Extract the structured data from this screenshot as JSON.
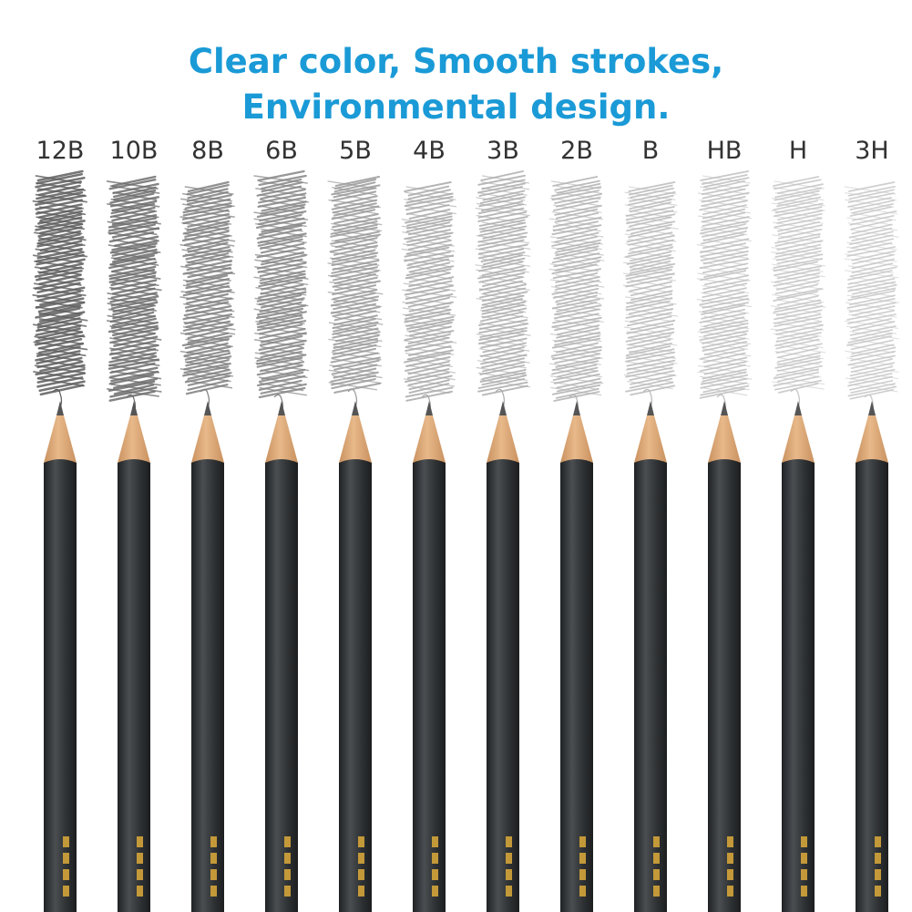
{
  "headline": {
    "line1": "Clear color, Smooth strokes,",
    "line2": "Environmental design.",
    "color": "#1a9ad6"
  },
  "grades": [
    {
      "label": "12B",
      "darkness": 0.95
    },
    {
      "label": "10B",
      "darkness": 0.85
    },
    {
      "label": "8B",
      "darkness": 0.72
    },
    {
      "label": "6B",
      "darkness": 0.68
    },
    {
      "label": "5B",
      "darkness": 0.55
    },
    {
      "label": "4B",
      "darkness": 0.45
    },
    {
      "label": "3B",
      "darkness": 0.42
    },
    {
      "label": "2B",
      "darkness": 0.38
    },
    {
      "label": "B",
      "darkness": 0.33
    },
    {
      "label": "HB",
      "darkness": 0.3
    },
    {
      "label": "H",
      "darkness": 0.26
    },
    {
      "label": "3H",
      "darkness": 0.24
    }
  ],
  "colors": {
    "label_text": "#333333",
    "pencil_body": "#2e3133",
    "pencil_highlight": "#4a4e51",
    "wood": "#e8b98a",
    "wood_shadow": "#c9915f",
    "lead": "#555555",
    "stamp_gold": "#d4a43a"
  }
}
